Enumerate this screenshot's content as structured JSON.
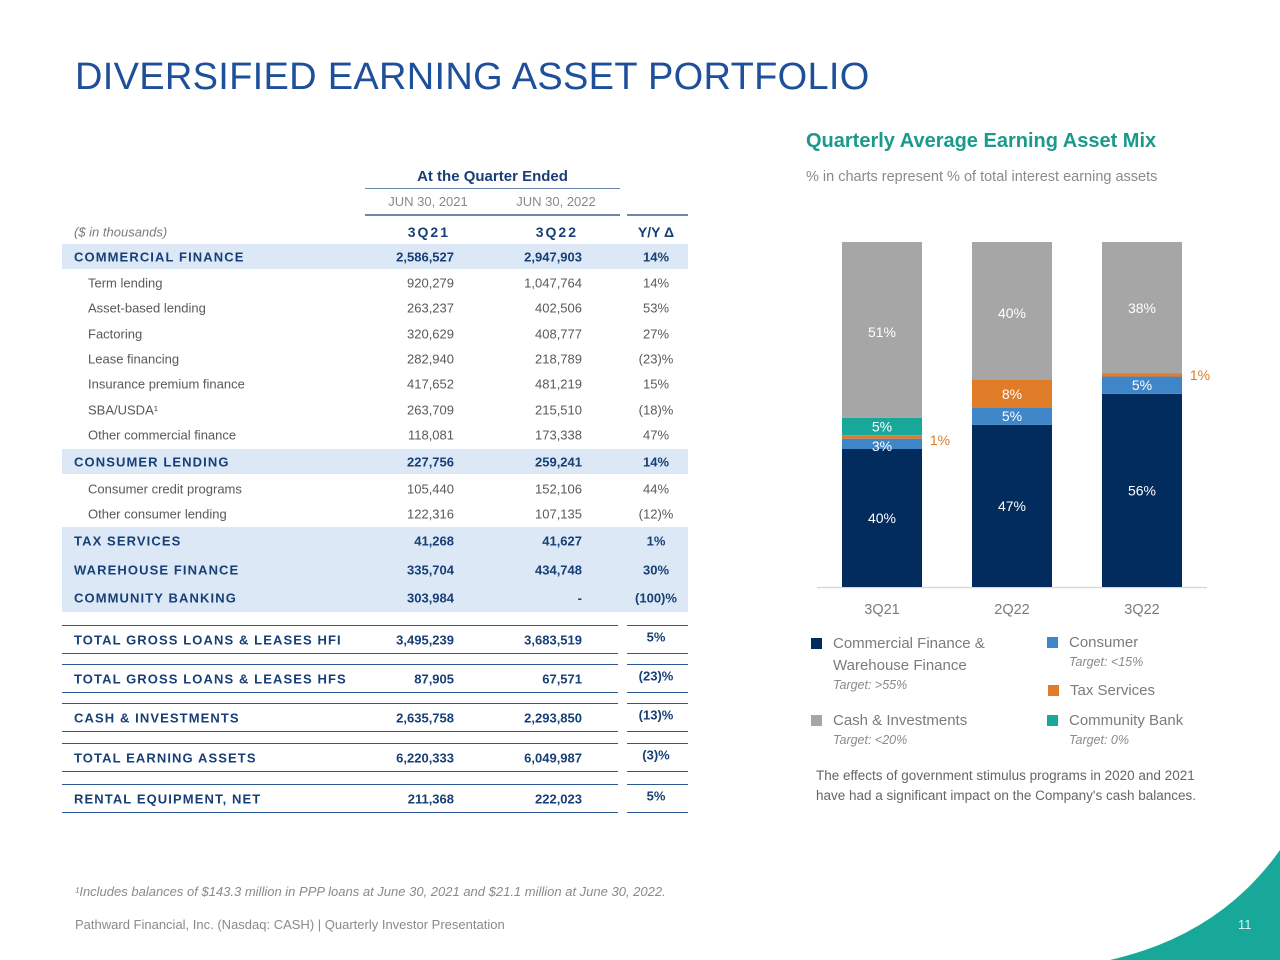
{
  "title": "DIVERSIFIED EARNING ASSET PORTFOLIO",
  "table": {
    "group_header": "At the Quarter Ended",
    "dates": [
      "JUN 30, 2021",
      "JUN 30, 2022"
    ],
    "units_label": "($ in thousands)",
    "columns": [
      "3Q21",
      "3Q22",
      "Y/Y Δ"
    ],
    "rows": [
      {
        "label": "COMMERCIAL FINANCE",
        "v1": "2,586,527",
        "v2": "2,947,903",
        "yy": "14%",
        "style": "section"
      },
      {
        "label": "Term lending",
        "v1": "920,279",
        "v2": "1,047,764",
        "yy": "14%",
        "style": "item"
      },
      {
        "label": "Asset-based lending",
        "v1": "263,237",
        "v2": "402,506",
        "yy": "53%",
        "style": "item"
      },
      {
        "label": "Factoring",
        "v1": "320,629",
        "v2": "408,777",
        "yy": "27%",
        "style": "item"
      },
      {
        "label": "Lease financing",
        "v1": "282,940",
        "v2": "218,789",
        "yy": "(23)%",
        "style": "item"
      },
      {
        "label": "Insurance premium finance",
        "v1": "417,652",
        "v2": "481,219",
        "yy": "15%",
        "style": "item"
      },
      {
        "label": "SBA/USDA¹",
        "v1": "263,709",
        "v2": "215,510",
        "yy": "(18)%",
        "style": "item"
      },
      {
        "label": "Other commercial finance",
        "v1": "118,081",
        "v2": "173,338",
        "yy": "47%",
        "style": "item"
      },
      {
        "label": "CONSUMER LENDING",
        "v1": "227,756",
        "v2": "259,241",
        "yy": "14%",
        "style": "section"
      },
      {
        "label": "Consumer credit programs",
        "v1": "105,440",
        "v2": "152,106",
        "yy": "44%",
        "style": "item"
      },
      {
        "label": "Other consumer lending",
        "v1": "122,316",
        "v2": "107,135",
        "yy": "(12)%",
        "style": "item"
      },
      {
        "label": "TAX SERVICES",
        "v1": "41,268",
        "v2": "41,627",
        "yy": "1%",
        "style": "section-plain"
      },
      {
        "label": "WAREHOUSE FINANCE",
        "v1": "335,704",
        "v2": "434,748",
        "yy": "30%",
        "style": "section-plain"
      },
      {
        "label": "COMMUNITY BANKING",
        "v1": "303,984",
        "v2": "-",
        "yy": "(100)%",
        "style": "section-plain"
      }
    ],
    "totals": [
      {
        "label": "TOTAL GROSS LOANS & LEASES HFI",
        "v1": "3,495,239",
        "v2": "3,683,519",
        "yy": "5%"
      },
      {
        "label": "TOTAL GROSS LOANS & LEASES HFS",
        "v1": "87,905",
        "v2": "67,571",
        "yy": "(23)%"
      },
      {
        "label": "CASH & INVESTMENTS",
        "v1": "2,635,758",
        "v2": "2,293,850",
        "yy": "(13)%"
      },
      {
        "label": "TOTAL EARNING ASSETS",
        "v1": "6,220,333",
        "v2": "6,049,987",
        "yy": "(3)%"
      },
      {
        "label": "RENTAL EQUIPMENT, NET",
        "v1": "211,368",
        "v2": "222,023",
        "yy": "5%"
      }
    ]
  },
  "chart_data": {
    "type": "bar",
    "stacked": true,
    "title": "Quarterly Average Earning Asset Mix",
    "subtitle": "% in charts represent % of total interest earning assets",
    "categories": [
      "3Q21",
      "2Q22",
      "3Q22"
    ],
    "ylim": [
      0,
      100
    ],
    "grid": false,
    "legend_placement": "bottom",
    "series": [
      {
        "name": "Commercial Finance & Warehouse Finance",
        "target": "Target: >55%",
        "color": "#022b5e",
        "values": [
          40,
          47,
          56
        ],
        "labels": [
          "40%",
          "47%",
          "56%"
        ]
      },
      {
        "name": "Consumer",
        "target": "Target: <15%",
        "color": "#3f86c8",
        "values": [
          3,
          5,
          5
        ],
        "labels": [
          "3%",
          "5%",
          "5%"
        ]
      },
      {
        "name": "Tax Services",
        "target": "",
        "color": "#e07b28",
        "values": [
          1,
          8,
          1
        ],
        "labels": [
          "1%",
          "8%",
          "1%"
        ]
      },
      {
        "name": "Community Bank",
        "target": "Target: 0%",
        "color": "#17a89a",
        "values": [
          5,
          0,
          0
        ],
        "labels": [
          "5%",
          "",
          ""
        ]
      },
      {
        "name": "Cash & Investments",
        "target": "Target: <20%",
        "color": "#a6a6a6",
        "values": [
          51,
          40,
          38
        ],
        "labels": [
          "51%",
          "40%",
          "38%"
        ]
      }
    ]
  },
  "note": "The effects of government stimulus programs in 2020 and 2021 have had a significant impact on the Company's cash balances.",
  "footnote": "¹Includes balances of $143.3 million in PPP loans at June 30, 2021 and $21.1 million at June 30, 2022.",
  "footer": "Pathward Financial, Inc. (Nasdaq: CASH) | Quarterly Investor Presentation",
  "page_number": "11",
  "colors": {
    "title": "#1d4f9a",
    "accent_teal": "#17a89a",
    "table_band": "#dce8f5",
    "table_text": "#173f77"
  }
}
